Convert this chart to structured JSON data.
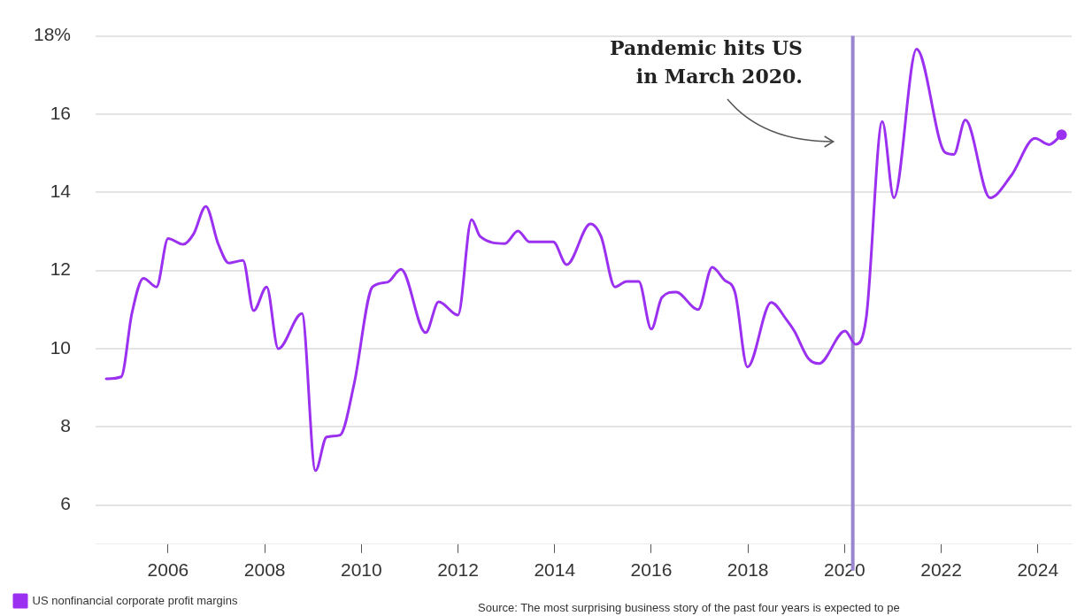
{
  "chart_data": {
    "type": "line",
    "x": [
      2004.72,
      2005.03,
      2005.25,
      2005.49,
      2005.76,
      2006.0,
      2006.31,
      2006.53,
      2006.78,
      2007.04,
      2007.26,
      2007.55,
      2007.77,
      2008.04,
      2008.28,
      2008.77,
      2009.05,
      2009.28,
      2009.56,
      2009.85,
      2010.23,
      2010.54,
      2010.82,
      2011.33,
      2011.6,
      2012.0,
      2012.28,
      2012.46,
      2012.97,
      2013.24,
      2013.48,
      2013.97,
      2014.25,
      2014.74,
      2014.96,
      2015.25,
      2015.49,
      2015.74,
      2016.0,
      2016.22,
      2016.51,
      2016.97,
      2017.26,
      2017.51,
      2017.73,
      2017.99,
      2018.48,
      2018.81,
      2018.96,
      2019.25,
      2019.47,
      2020.01,
      2020.23,
      2020.45,
      2020.78,
      2021.02,
      2021.49,
      2022.08,
      2022.26,
      2022.5,
      2023.01,
      2023.45,
      2023.94,
      2024.23,
      2024.49
    ],
    "series": [
      {
        "name": "US nonfinancial corporate profit margins",
        "color": "#9b30f0",
        "values": [
          9.23,
          9.28,
          10.9,
          11.8,
          11.58,
          12.82,
          12.67,
          12.94,
          13.64,
          12.67,
          12.19,
          12.26,
          10.97,
          11.58,
          10.0,
          10.9,
          6.88,
          7.74,
          7.79,
          9.1,
          11.58,
          11.7,
          12.03,
          10.41,
          11.2,
          10.86,
          13.3,
          12.87,
          12.69,
          13.01,
          12.73,
          12.73,
          12.15,
          13.19,
          12.87,
          11.58,
          11.72,
          11.72,
          10.5,
          11.31,
          11.45,
          11.0,
          12.08,
          11.76,
          11.45,
          9.53,
          11.18,
          10.72,
          10.45,
          9.75,
          9.62,
          10.45,
          10.11,
          10.81,
          15.81,
          13.86,
          17.66,
          15.02,
          14.97,
          15.85,
          13.86,
          14.43,
          15.38,
          15.22,
          15.47
        ]
      },
      {
        "type": "scatter",
        "color": "#9b30f0",
        "x": [
          2024.49
        ],
        "values": [
          15.47
        ],
        "marker": "circle"
      }
    ],
    "xlim": [
      2004.5,
      2024.7
    ],
    "xticks": [
      2006,
      2008,
      2010,
      2012,
      2014,
      2016,
      2018,
      2020,
      2022,
      2024
    ],
    "ylim": [
      5,
      18
    ],
    "yticks": [
      6,
      8,
      10,
      12,
      14,
      16,
      {
        "value": 18,
        "label": "18%"
      }
    ],
    "grid": "y",
    "legend": "bottom left",
    "marker": "none",
    "ref_lines": [
      {
        "axis": "x",
        "value": 2020.17,
        "color": "#9a86d0"
      }
    ],
    "annotations": [
      "Pandemic hits US\nin March 2020.",
      "Source: The most surprising business story of the past four years is expected to pe"
    ]
  }
}
